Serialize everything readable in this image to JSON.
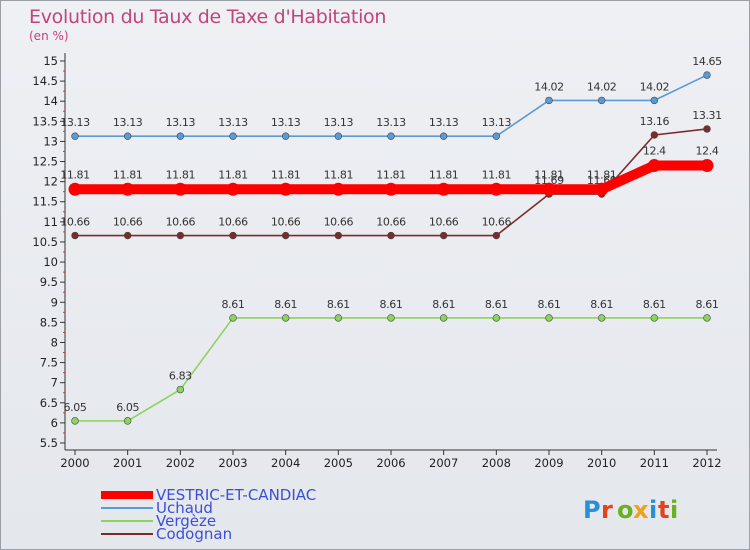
{
  "title": "Evolution du Taux de Taxe d'Habitation",
  "subtitle": "(en %)",
  "brand": "Proxiti",
  "chart_data": {
    "type": "line",
    "x": [
      "2000",
      "2001",
      "2002",
      "2003",
      "2004",
      "2005",
      "2006",
      "2007",
      "2008",
      "2009",
      "2010",
      "2011",
      "2012"
    ],
    "ylim": [
      5.5,
      15
    ],
    "yticks": [
      "5.5",
      "6",
      "6.5",
      "7",
      "7.5",
      "8",
      "8.5",
      "9",
      "9.5",
      "10",
      "10.5",
      "11",
      "11.5",
      "12",
      "12.5",
      "13",
      "13.5",
      "14",
      "14.5",
      "15"
    ],
    "grid": false,
    "legend": "bottom-left",
    "series": [
      {
        "name": "VESTRIC-ET-CANDIAC",
        "color": "#ff0000",
        "bold": true,
        "values": [
          11.81,
          11.81,
          11.81,
          11.81,
          11.81,
          11.81,
          11.81,
          11.81,
          11.81,
          11.81,
          11.81,
          12.4,
          12.4
        ],
        "labels": [
          "11.81",
          "11.81",
          "11.81",
          "11.81",
          "11.81",
          "11.81",
          "11.81",
          "11.81",
          "11.81",
          "11.81",
          "11.81",
          "12.4",
          "12.4"
        ]
      },
      {
        "name": "Uchaud",
        "color": "#5b9bd5",
        "bold": false,
        "values": [
          13.13,
          13.13,
          13.13,
          13.13,
          13.13,
          13.13,
          13.13,
          13.13,
          13.13,
          14.02,
          14.02,
          14.02,
          14.65
        ],
        "labels": [
          "13.13",
          "13.13",
          "13.13",
          "13.13",
          "13.13",
          "13.13",
          "13.13",
          "13.13",
          "13.13",
          "14.02",
          "14.02",
          "14.02",
          "14.65"
        ]
      },
      {
        "name": "Vergèze",
        "color": "#8dd35f",
        "bold": false,
        "values": [
          6.05,
          6.05,
          6.83,
          8.61,
          8.61,
          8.61,
          8.61,
          8.61,
          8.61,
          8.61,
          8.61,
          8.61,
          8.61
        ],
        "labels": [
          "6.05",
          "6.05",
          "6.83",
          "8.61",
          "8.61",
          "8.61",
          "8.61",
          "8.61",
          "8.61",
          "8.61",
          "8.61",
          "8.61",
          "8.61"
        ]
      },
      {
        "name": "Codognan",
        "color": "#7b2b2b",
        "bold": false,
        "values": [
          10.66,
          10.66,
          10.66,
          10.66,
          10.66,
          10.66,
          10.66,
          10.66,
          10.66,
          11.69,
          11.69,
          13.16,
          13.31
        ],
        "labels": [
          "10.66",
          "10.66",
          "10.66",
          "10.66",
          "10.66",
          "10.66",
          "10.66",
          "10.66",
          "10.66",
          "11.69",
          "11.69",
          "13.16",
          "13.31"
        ]
      }
    ]
  }
}
